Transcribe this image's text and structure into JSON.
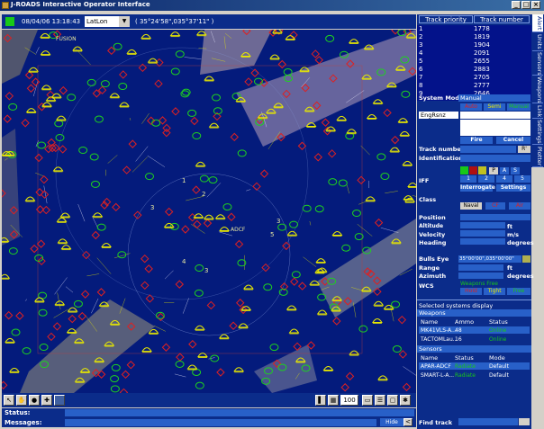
{
  "window": {
    "title": "J-ROADS Interactive Operator Interface",
    "controls": [
      "_",
      "□",
      "×"
    ]
  },
  "top_toolbar": {
    "datetime": "08/04/06 13:18:43",
    "coord_mode": "LatLon",
    "cursor_coord": "( 35°24'58\",035°37'11\" )"
  },
  "map": {
    "background": "#041b7c",
    "contacts": {
      "yellow_color": "#e8e800",
      "green_color": "#1ed21e",
      "red_color": "#e02020",
      "hostile_count": 140,
      "friendly_count": 90,
      "neutral_count": 110
    },
    "labels": [
      "1",
      "3",
      "3",
      "2",
      "5",
      "3",
      "4",
      "ADCF",
      "FUSION"
    ]
  },
  "bottom_toolbar": {
    "tools": [
      "cursor-icon",
      "hand-icon",
      "dot-icon",
      "plus-icon",
      "layer-icon"
    ],
    "zoom": "100",
    "right_tools": [
      "pointer-icon",
      "grid-icon",
      "zoom-box",
      "ruler-icon",
      "list-icon",
      "doc-icon",
      "settings-icon"
    ]
  },
  "status": {
    "status_label": "Status:",
    "messages_label": "Messages:",
    "hide_label": "Hide",
    "hide_caret": "<"
  },
  "track_list": {
    "headers": [
      "Track priority",
      "Track number"
    ],
    "rows": [
      {
        "priority": "1",
        "number": "1778"
      },
      {
        "priority": "2",
        "number": "1819"
      },
      {
        "priority": "3",
        "number": "1904"
      },
      {
        "priority": "4",
        "number": "2091"
      },
      {
        "priority": "5",
        "number": "2655"
      },
      {
        "priority": "6",
        "number": "2883"
      },
      {
        "priority": "7",
        "number": "2705"
      },
      {
        "priority": "8",
        "number": "2777"
      },
      {
        "priority": "9",
        "number": "2646"
      }
    ]
  },
  "system_mode": {
    "label": "System Mode",
    "value": "Manual",
    "buttons": [
      "Auto",
      "Semi",
      "Manual"
    ]
  },
  "engage": {
    "combo_value": "EngRsnz",
    "fire_label": "Fire",
    "cancel_label": "Cancel"
  },
  "track_details": {
    "track_number_label": "Track number",
    "track_number_btn": "R'",
    "identification_label": "Identification",
    "iff_label": "IFF",
    "iff_buttons": [
      "P",
      "A",
      "S"
    ],
    "iff_modes": [
      "1",
      "2",
      "4",
      "5"
    ],
    "interrogate_label": "Interrogate",
    "settings_label": "Settings",
    "class_label": "Class",
    "class_buttons": [
      "Naval",
      "CF",
      "Air"
    ],
    "position_label": "Position",
    "altitude_label": "Altitude",
    "altitude_unit": "ft",
    "velocity_label": "Velocity",
    "velocity_unit": "m/s",
    "heading_label": "Heading",
    "heading_unit": "degrees"
  },
  "bullseye": {
    "label": "Bulls Eye",
    "value": "35°00'00\",035°00'00\"",
    "range_label": "Range",
    "range_unit": "ft",
    "azimuth_label": "Azimuth",
    "azimuth_unit": "degrees"
  },
  "wcs": {
    "label": "WCS",
    "status": "Weapons Free",
    "buttons": [
      "Hold",
      "Tight",
      "Free"
    ]
  },
  "selected_systems": {
    "title": "Selected systems display",
    "weapons_title": "Weapons",
    "weapons_headers": [
      "Name",
      "Ammo",
      "Status"
    ],
    "weapons": [
      {
        "name": "MK41VLS-A...",
        "ammo": "48",
        "status": "Online"
      },
      {
        "name": "TACTOMLau...",
        "ammo": "16",
        "status": "Online"
      }
    ],
    "sensors_title": "Sensors",
    "sensors_headers": [
      "Name",
      "Status",
      "Mode"
    ],
    "sensors": [
      {
        "name": "APAR-ADCF",
        "status": "Radiate",
        "mode": "Default"
      },
      {
        "name": "SMART-L-A...",
        "status": "Radiate",
        "mode": "Default"
      }
    ]
  },
  "find_track": {
    "label": "Find track"
  },
  "vertical_tabs": [
    "Alert",
    "Units",
    "Sensors",
    "Weapons",
    "Link",
    "Settings",
    "Plotter"
  ]
}
